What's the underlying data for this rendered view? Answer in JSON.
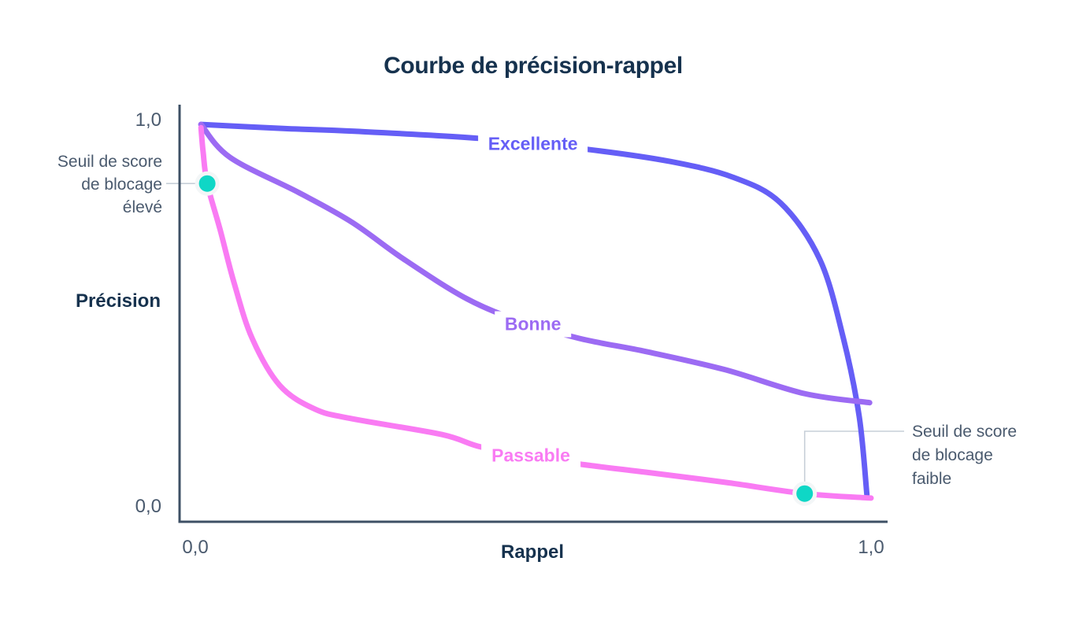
{
  "title": "Courbe de précision-rappel",
  "chart_data": {
    "type": "line",
    "title": "Courbe de précision-rappel",
    "xlabel": "Rappel",
    "ylabel": "Précision",
    "xlim": [
      0,
      1
    ],
    "ylim": [
      0,
      1
    ],
    "x_tick_labels": [
      "0,0",
      "1,0"
    ],
    "y_tick_labels": [
      "0,0",
      "1,0"
    ],
    "grid": false,
    "legend": "labels-on-curves",
    "series": [
      {
        "name": "Excellente",
        "color": "#655EF6",
        "label_anchor": {
          "x": 0.511,
          "y": 0.939
        },
        "points": [
          [
            0.031,
            0.988
          ],
          [
            0.15,
            0.978
          ],
          [
            0.253,
            0.971
          ],
          [
            0.436,
            0.953
          ],
          [
            0.59,
            0.926
          ],
          [
            0.709,
            0.896
          ],
          [
            0.8,
            0.857
          ],
          [
            0.869,
            0.793
          ],
          [
            0.926,
            0.652
          ],
          [
            0.96,
            0.456
          ],
          [
            0.983,
            0.26
          ],
          [
            0.994,
            0.068
          ]
        ]
      },
      {
        "name": "Bonne",
        "color": "#9C6BF3",
        "label_anchor": {
          "x": 0.511,
          "y": 0.492
        },
        "points": [
          [
            0.031,
            0.988
          ],
          [
            0.073,
            0.906
          ],
          [
            0.173,
            0.818
          ],
          [
            0.25,
            0.744
          ],
          [
            0.325,
            0.652
          ],
          [
            0.416,
            0.554
          ],
          [
            0.493,
            0.499
          ],
          [
            0.578,
            0.456
          ],
          [
            0.675,
            0.423
          ],
          [
            0.789,
            0.378
          ],
          [
            0.903,
            0.319
          ],
          [
            0.998,
            0.296
          ]
        ]
      },
      {
        "name": "Passable",
        "color": "#F97BF3",
        "label_anchor": {
          "x": 0.508,
          "y": 0.164
        },
        "points": [
          [
            0.031,
            0.98
          ],
          [
            0.034,
            0.92
          ],
          [
            0.04,
            0.841
          ],
          [
            0.059,
            0.724
          ],
          [
            0.079,
            0.593
          ],
          [
            0.105,
            0.456
          ],
          [
            0.145,
            0.339
          ],
          [
            0.196,
            0.28
          ],
          [
            0.25,
            0.256
          ],
          [
            0.379,
            0.217
          ],
          [
            0.436,
            0.186
          ],
          [
            0.515,
            0.162
          ],
          [
            0.58,
            0.143
          ],
          [
            0.675,
            0.123
          ],
          [
            0.789,
            0.098
          ],
          [
            0.904,
            0.07
          ],
          [
            1.0,
            0.059
          ]
        ]
      }
    ],
    "markers": [
      {
        "id": "seuil-eleve",
        "label": "Seuil de score de blocage élevé",
        "x": 0.04,
        "y": 0.841,
        "color": "#0FD7C6"
      },
      {
        "id": "seuil-faible",
        "label": "Seuil de score de blocage faible",
        "x": 0.904,
        "y": 0.07,
        "color": "#0FD7C6"
      }
    ]
  },
  "annotations": {
    "high_threshold": {
      "lines": [
        "Seuil de score",
        "de blocage",
        "élevé"
      ]
    },
    "low_threshold": {
      "lines": [
        "Seuil de score",
        "de blocage",
        "faible"
      ]
    }
  },
  "palette": {
    "background": "#FFFFFF",
    "axis": "#3E5065",
    "heading": "#16324E",
    "tick": "#4A5A6E",
    "annotation": "#4A5A6E",
    "connector": "#C7CFD8",
    "marker": "#0FD7C6",
    "marker_halo": "#F3F6F7"
  }
}
